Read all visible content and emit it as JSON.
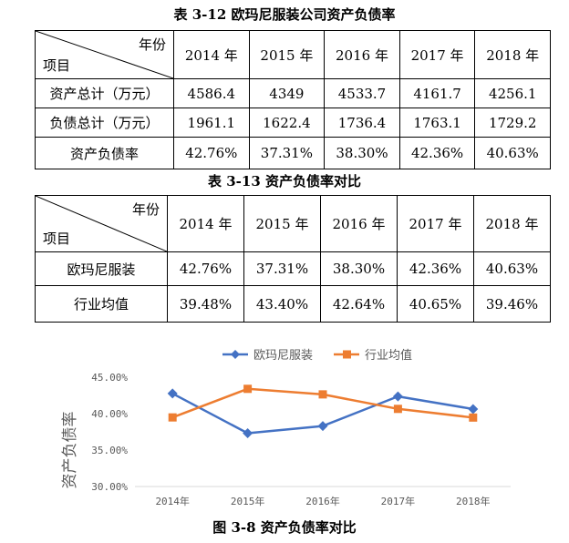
{
  "table1": {
    "caption": "表 3-12 欧玛尼服装公司资产负债率",
    "header_year": "年份",
    "header_item": "项目",
    "years": [
      "2014 年",
      "2015 年",
      "2016 年",
      "2017 年",
      "2018 年"
    ],
    "rows": [
      {
        "label": "资产总计（万元）",
        "values": [
          "4586.4",
          "4349",
          "4533.7",
          "4161.7",
          "4256.1"
        ]
      },
      {
        "label": "负债总计（万元）",
        "values": [
          "1961.1",
          "1622.4",
          "1736.4",
          "1763.1",
          "1729.2"
        ]
      },
      {
        "label": "资产负债率",
        "values": [
          "42.76%",
          "37.31%",
          "38.30%",
          "42.36%",
          "40.63%"
        ]
      }
    ]
  },
  "table2": {
    "caption": "表 3-13 资产负债率对比",
    "header_year": "年份",
    "header_item": "项目",
    "years": [
      "2014 年",
      "2015 年",
      "2016 年",
      "2017 年",
      "2018 年"
    ],
    "rows": [
      {
        "label": "欧玛尼服装",
        "values": [
          "42.76%",
          "37.31%",
          "38.30%",
          "42.36%",
          "40.63%"
        ]
      },
      {
        "label": "行业均值",
        "values": [
          "39.48%",
          "43.40%",
          "42.64%",
          "40.65%",
          "39.46%"
        ]
      }
    ]
  },
  "chart_data": {
    "type": "line",
    "title": "",
    "xlabel": "",
    "ylabel": "资产负债率",
    "categories": [
      "2014年",
      "2015年",
      "2016年",
      "2017年",
      "2018年"
    ],
    "yticks": [
      "30.00%",
      "35.00%",
      "40.00%",
      "45.00%"
    ],
    "ylim": [
      30,
      45
    ],
    "grid": false,
    "legend_position": "top",
    "series": [
      {
        "name": "欧玛尼服装",
        "color": "#4472C4",
        "marker": "diamond",
        "values": [
          42.76,
          37.31,
          38.3,
          42.36,
          40.63
        ]
      },
      {
        "name": "行业均值",
        "color": "#ED7D31",
        "marker": "square",
        "values": [
          39.48,
          43.4,
          42.64,
          40.65,
          39.46
        ]
      }
    ]
  },
  "figure_caption": "图 3-8 资产负债率对比"
}
